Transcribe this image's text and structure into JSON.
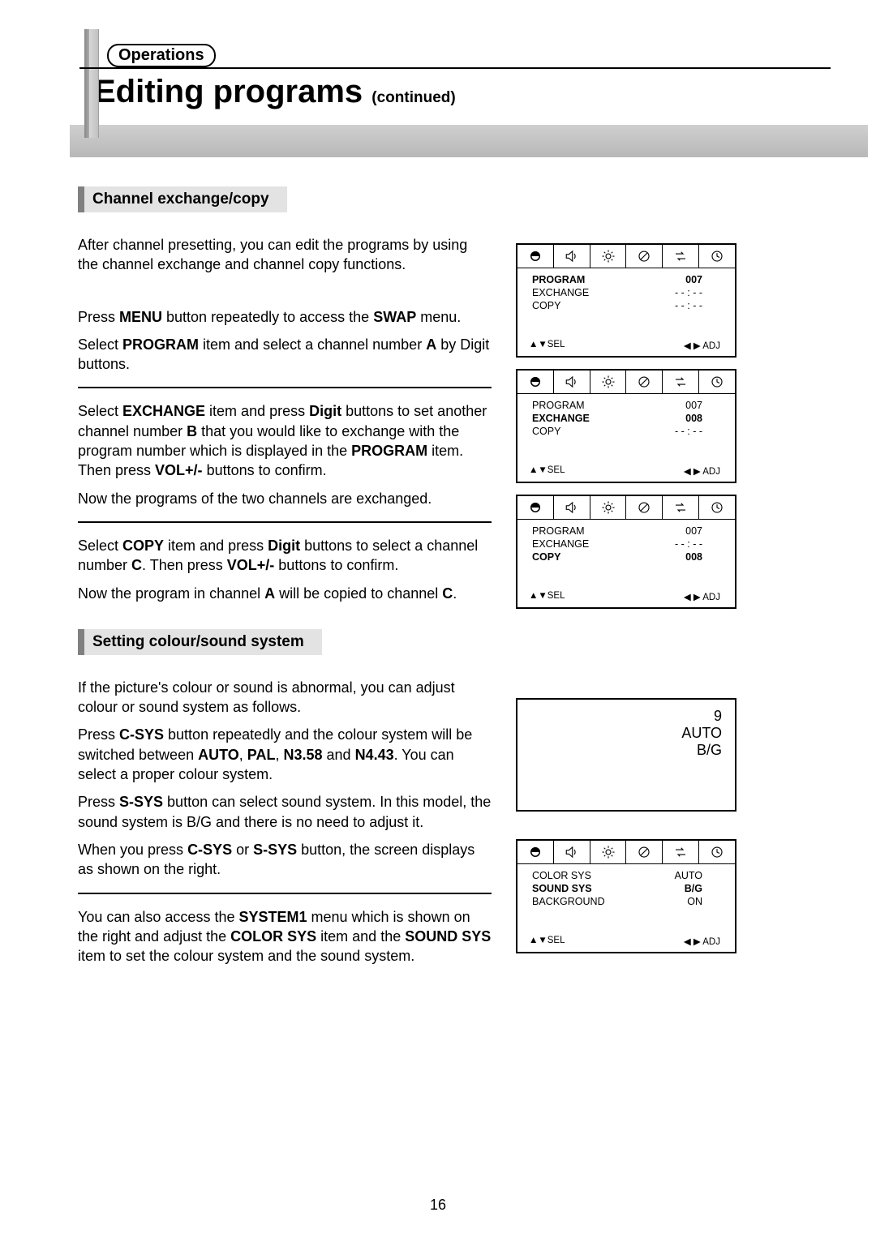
{
  "header": {
    "section_label": "Operations",
    "title_main": "Editing programs",
    "title_suffix": "(continued)"
  },
  "subsections": {
    "sub1": "Channel exchange/copy",
    "sub2": "Setting colour/sound system"
  },
  "para": {
    "p1": "After channel presetting, you can edit the programs by using the channel exchange and channel copy functions.",
    "p2a": "Press ",
    "p2b": "MENU",
    "p2c": " button repeatedly to access the ",
    "p2d": "SWAP",
    "p2e": " menu.",
    "p3a": "Select ",
    "p3b": "PROGRAM",
    "p3c": " item and select a channel number ",
    "p3d": "A",
    "p3e": " by Digit buttons.",
    "p4a": "Select ",
    "p4b": "EXCHANGE",
    "p4c": " item and press ",
    "p4d": "Digit",
    "p4e": " buttons to set another channel number ",
    "p4f": "B",
    "p4g": " that you would like to exchange with the program number which is displayed in the ",
    "p4h": "PROGRAM",
    "p4i": " item. Then press ",
    "p4j": "VOL+/-",
    "p4k": " buttons to confirm.",
    "p5": "Now the programs of the two channels are exchanged.",
    "p6a": "Select ",
    "p6b": "COPY",
    "p6c": " item and press ",
    "p6d": "Digit",
    "p6e": " buttons to select a channel number ",
    "p6f": "C",
    "p6g": ". Then press ",
    "p6h": "VOL+/-",
    "p6i": " buttons to confirm.",
    "p7a": "Now the program in channel ",
    "p7b": "A",
    "p7c": " will be copied to channel ",
    "p7d": "C",
    "p7e": ".",
    "p8": "If the picture's colour or sound is abnormal, you can adjust colour or sound system as follows.",
    "p9a": "Press ",
    "p9b": "C-SYS",
    "p9c": " button repeatedly and the colour system will be switched between ",
    "p9d": "AUTO",
    "p9e": ", ",
    "p9f": "PAL",
    "p9g": ", ",
    "p9h": "N3.58",
    "p9i": " and ",
    "p9j": "N4.43",
    "p9k": ". You can select a proper colour system.",
    "p10a": "Press ",
    "p10b": "S-SYS",
    "p10c": " button can select sound system. In this model, the sound system is B/G and there is no need to adjust it.",
    "p11a": "When you press ",
    "p11b": "C-SYS",
    "p11c": " or ",
    "p11d": "S-SYS",
    "p11e": " button, the screen displays as shown on the right.",
    "p12a": "You can also access the ",
    "p12b": "SYSTEM1",
    "p12c": " menu which is shown on the right and adjust the ",
    "p12d": "COLOR SYS",
    "p12e": " item and the ",
    "p12f": "SOUND SYS",
    "p12g": " item to set the colour system and the sound system."
  },
  "osd": {
    "sel": "SEL",
    "adj": "ADJ",
    "up_down": "▲▼",
    "left_right": "◀ ▶",
    "panel1": {
      "r1l": "PROGRAM",
      "r1r": "007",
      "r2l": "EXCHANGE",
      "r2r": "- - : - -",
      "r3l": "COPY",
      "r3r": "- - : - -"
    },
    "panel2": {
      "r1l": "PROGRAM",
      "r1r": "007",
      "r2l": "EXCHANGE",
      "r2r": "008",
      "r3l": "COPY",
      "r3r": "- - : - -"
    },
    "panel3": {
      "r1l": "PROGRAM",
      "r1r": "007",
      "r2l": "EXCHANGE",
      "r2r": "- - : - -",
      "r3l": "COPY",
      "r3r": "008"
    },
    "simple": {
      "l1": "9",
      "l2": "AUTO",
      "l3": "B/G"
    },
    "panel4": {
      "r1l": "COLOR SYS",
      "r1r": "AUTO",
      "r2l": "SOUND SYS",
      "r2r": "B/G",
      "r3l": "BACKGROUND",
      "r3r": "ON"
    }
  },
  "page_number": "16"
}
